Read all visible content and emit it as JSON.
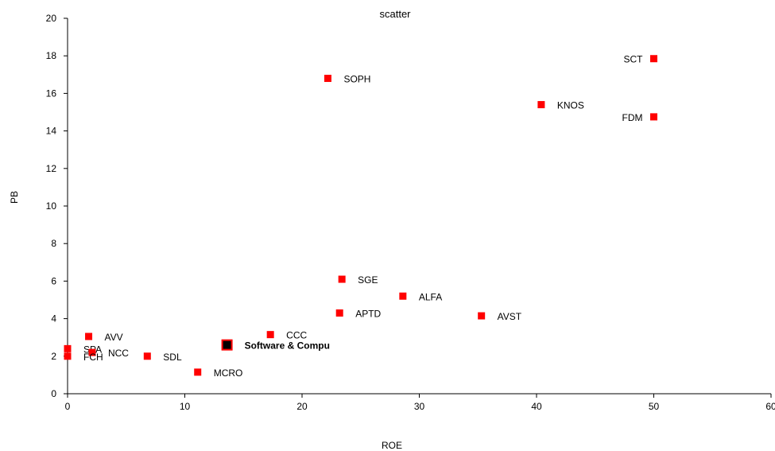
{
  "chart_data": {
    "type": "scatter",
    "title": "scatter",
    "xlabel": "ROE",
    "ylabel": "PB",
    "xlim": [
      0,
      60
    ],
    "ylim": [
      0,
      20
    ],
    "xticks": [
      "0",
      "10",
      "20",
      "30",
      "40",
      "50",
      "60"
    ],
    "yticks": [
      "0",
      "2",
      "4",
      "6",
      "8",
      "10",
      "12",
      "14",
      "16",
      "18",
      "20"
    ],
    "grid": false,
    "marker_color": "#ff0000",
    "highlight_color": "#000000",
    "points": [
      {
        "label": "SCT",
        "x": 50.0,
        "y": 17.85
      },
      {
        "label": "SOPH",
        "x": 22.2,
        "y": 16.8
      },
      {
        "label": "KNOS",
        "x": 40.4,
        "y": 15.4
      },
      {
        "label": "FDM",
        "x": 50.0,
        "y": 14.75
      },
      {
        "label": "SGE",
        "x": 23.4,
        "y": 6.1
      },
      {
        "label": "ALFA",
        "x": 28.6,
        "y": 5.2
      },
      {
        "label": "APTD",
        "x": 23.2,
        "y": 4.3
      },
      {
        "label": "AVST",
        "x": 35.3,
        "y": 4.15
      },
      {
        "label": "CCC",
        "x": 17.3,
        "y": 3.15
      },
      {
        "label": "AVV",
        "x": 1.8,
        "y": 3.05
      },
      {
        "label": "SPA",
        "x": 0.0,
        "y": 2.4
      },
      {
        "label": "NCC",
        "x": 2.1,
        "y": 2.2
      },
      {
        "label": "FCH",
        "x": 0.0,
        "y": 2.0
      },
      {
        "label": "SDL",
        "x": 6.8,
        "y": 2.0
      },
      {
        "label": "MCRO",
        "x": 11.1,
        "y": 1.15
      },
      {
        "label": "Software & Compu",
        "x": 13.6,
        "y": 2.6,
        "highlight": true
      }
    ]
  }
}
